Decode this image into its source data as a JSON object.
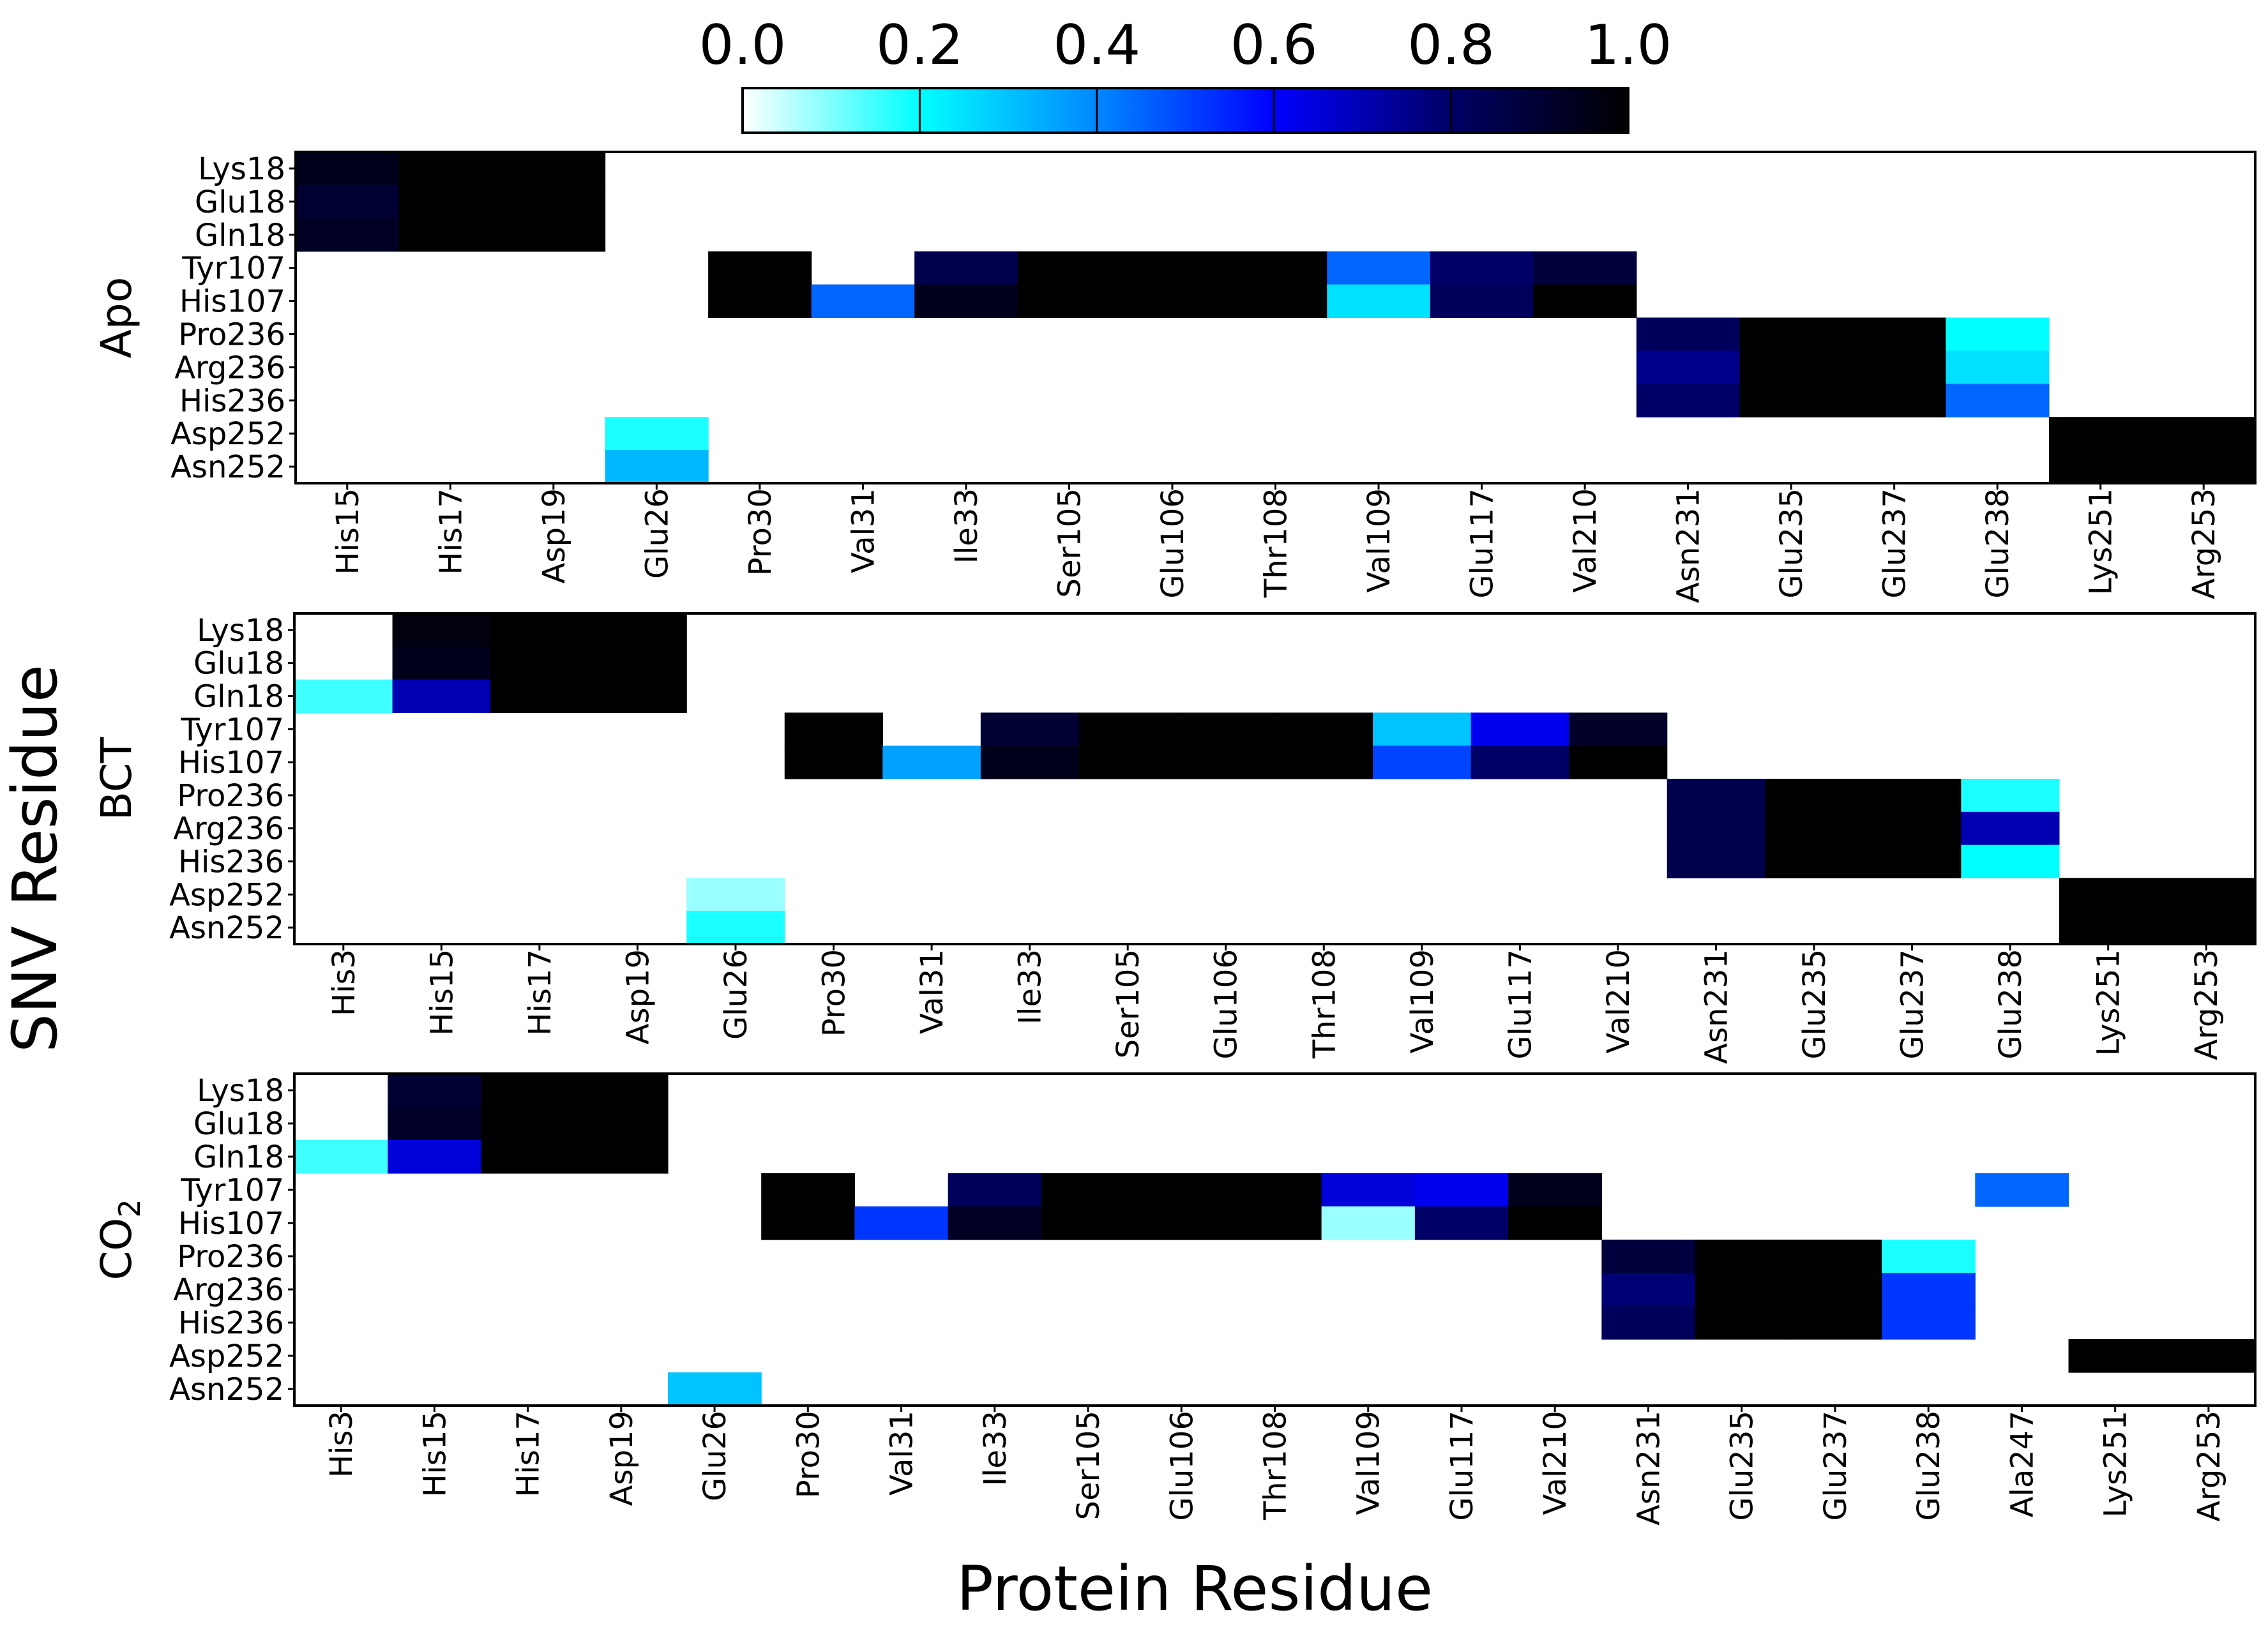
{
  "chart_data": {
    "type": "heatmap",
    "colorbar": {
      "ticks": [
        "0.0",
        "0.2",
        "0.4",
        "0.6",
        "0.8",
        "1.0"
      ],
      "range": [
        0,
        1
      ],
      "colors": [
        "#ffffff",
        "#00ffff",
        "#0088ff",
        "#0000ff",
        "#000066",
        "#000000"
      ]
    },
    "xlabel": "Protein Residue",
    "ylabel": "SNV Residue",
    "rows": [
      "Lys18",
      "Glu18",
      "Gln18",
      "Tyr107",
      "His107",
      "Pro236",
      "Arg236",
      "His236",
      "Asp252",
      "Asn252"
    ],
    "panels": [
      {
        "label": "Apo",
        "label_sub": "",
        "columns": [
          "His15",
          "His17",
          "Asp19",
          "Glu26",
          "Pro30",
          "Val31",
          "Ile33",
          "Ser105",
          "Glu106",
          "Thr108",
          "Val109",
          "Glu117",
          "Val210",
          "Asn231",
          "Glu235",
          "Glu237",
          "Glu238",
          "Lys251",
          "Arg253"
        ],
        "values": [
          [
            0.95,
            1.0,
            1.0,
            null,
            null,
            null,
            null,
            null,
            null,
            null,
            null,
            null,
            null,
            null,
            null,
            null,
            null,
            null,
            null
          ],
          [
            0.9,
            1.0,
            1.0,
            null,
            null,
            null,
            null,
            null,
            null,
            null,
            null,
            null,
            null,
            null,
            null,
            null,
            null,
            null,
            null
          ],
          [
            0.93,
            1.0,
            1.0,
            null,
            null,
            null,
            null,
            null,
            null,
            null,
            null,
            null,
            null,
            null,
            null,
            null,
            null,
            null,
            null
          ],
          [
            null,
            null,
            null,
            null,
            1.0,
            null,
            0.85,
            1.0,
            1.0,
            1.0,
            0.45,
            0.8,
            0.88,
            null,
            null,
            null,
            null,
            null,
            null
          ],
          [
            null,
            null,
            null,
            null,
            1.0,
            0.45,
            0.95,
            1.0,
            1.0,
            1.0,
            0.25,
            0.82,
            1.0,
            null,
            null,
            null,
            null,
            null,
            null
          ],
          [
            null,
            null,
            null,
            null,
            null,
            null,
            null,
            null,
            null,
            null,
            null,
            null,
            null,
            0.82,
            1.0,
            1.0,
            0.2,
            null,
            null
          ],
          [
            null,
            null,
            null,
            null,
            null,
            null,
            null,
            null,
            null,
            null,
            null,
            null,
            null,
            0.75,
            1.0,
            1.0,
            0.25,
            null,
            null
          ],
          [
            null,
            null,
            null,
            null,
            null,
            null,
            null,
            null,
            null,
            null,
            null,
            null,
            null,
            0.8,
            1.0,
            1.0,
            0.45,
            null,
            null
          ],
          [
            null,
            null,
            null,
            0.18,
            null,
            null,
            null,
            null,
            null,
            null,
            null,
            null,
            null,
            null,
            null,
            null,
            null,
            1.0,
            1.0
          ],
          [
            null,
            null,
            null,
            0.32,
            null,
            null,
            null,
            null,
            null,
            null,
            null,
            null,
            null,
            null,
            null,
            null,
            null,
            1.0,
            1.0
          ]
        ]
      },
      {
        "label": "BCT",
        "label_sub": "",
        "columns": [
          "His3",
          "His15",
          "His17",
          "Asp19",
          "Glu26",
          "Pro30",
          "Val31",
          "Ile33",
          "Ser105",
          "Glu106",
          "Thr108",
          "Val109",
          "Glu117",
          "Val210",
          "Asn231",
          "Glu235",
          "Glu237",
          "Glu238",
          "Lys251",
          "Arg253"
        ],
        "values": [
          [
            null,
            0.97,
            1.0,
            1.0,
            null,
            null,
            null,
            null,
            null,
            null,
            null,
            null,
            null,
            null,
            null,
            null,
            null,
            null,
            null,
            null
          ],
          [
            null,
            0.95,
            1.0,
            1.0,
            null,
            null,
            null,
            null,
            null,
            null,
            null,
            null,
            null,
            null,
            null,
            null,
            null,
            null,
            null,
            null
          ],
          [
            0.15,
            0.7,
            1.0,
            1.0,
            null,
            null,
            null,
            null,
            null,
            null,
            null,
            null,
            null,
            null,
            null,
            null,
            null,
            null,
            null,
            null
          ],
          [
            null,
            null,
            null,
            null,
            null,
            1.0,
            null,
            0.9,
            1.0,
            1.0,
            1.0,
            0.3,
            0.62,
            0.92,
            null,
            null,
            null,
            null,
            null,
            null
          ],
          [
            null,
            null,
            null,
            null,
            null,
            1.0,
            0.36,
            0.95,
            1.0,
            1.0,
            1.0,
            0.5,
            0.8,
            1.0,
            null,
            null,
            null,
            null,
            null,
            null
          ],
          [
            null,
            null,
            null,
            null,
            null,
            null,
            null,
            null,
            null,
            null,
            null,
            null,
            null,
            null,
            0.85,
            1.0,
            1.0,
            0.18,
            null,
            null
          ],
          [
            null,
            null,
            null,
            null,
            null,
            null,
            null,
            null,
            null,
            null,
            null,
            null,
            null,
            null,
            0.85,
            1.0,
            1.0,
            0.7,
            null,
            null
          ],
          [
            null,
            null,
            null,
            null,
            null,
            null,
            null,
            null,
            null,
            null,
            null,
            null,
            null,
            null,
            0.85,
            1.0,
            1.0,
            0.2,
            null,
            null
          ],
          [
            null,
            null,
            null,
            null,
            0.08,
            null,
            null,
            null,
            null,
            null,
            null,
            null,
            null,
            null,
            null,
            null,
            null,
            null,
            1.0,
            1.0
          ],
          [
            null,
            null,
            null,
            null,
            0.18,
            null,
            null,
            null,
            null,
            null,
            null,
            null,
            null,
            null,
            null,
            null,
            null,
            null,
            1.0,
            1.0
          ]
        ]
      },
      {
        "label": "CO",
        "label_sub": "2",
        "columns": [
          "His3",
          "His15",
          "His17",
          "Asp19",
          "Glu26",
          "Pro30",
          "Val31",
          "Ile33",
          "Ser105",
          "Glu106",
          "Thr108",
          "Val109",
          "Glu117",
          "Val210",
          "Asn231",
          "Glu235",
          "Glu237",
          "Glu238",
          "Ala247",
          "Lys251",
          "Arg253"
        ],
        "values": [
          [
            null,
            0.9,
            1.0,
            1.0,
            null,
            null,
            null,
            null,
            null,
            null,
            null,
            null,
            null,
            null,
            null,
            null,
            null,
            null,
            null,
            null,
            null
          ],
          [
            null,
            0.92,
            1.0,
            1.0,
            null,
            null,
            null,
            null,
            null,
            null,
            null,
            null,
            null,
            null,
            null,
            null,
            null,
            null,
            null,
            null,
            null
          ],
          [
            0.15,
            0.65,
            1.0,
            1.0,
            null,
            null,
            null,
            null,
            null,
            null,
            null,
            null,
            null,
            null,
            null,
            null,
            null,
            null,
            null,
            null,
            null
          ],
          [
            null,
            null,
            null,
            null,
            null,
            1.0,
            null,
            0.82,
            1.0,
            1.0,
            1.0,
            0.65,
            0.62,
            0.95,
            null,
            null,
            null,
            null,
            0.45,
            null,
            null
          ],
          [
            null,
            null,
            null,
            null,
            null,
            1.0,
            0.52,
            0.93,
            1.0,
            1.0,
            1.0,
            0.08,
            0.8,
            1.0,
            null,
            null,
            null,
            null,
            null,
            null,
            null
          ],
          [
            null,
            null,
            null,
            null,
            null,
            null,
            null,
            null,
            null,
            null,
            null,
            null,
            null,
            null,
            0.88,
            1.0,
            1.0,
            0.18,
            null,
            null,
            null
          ],
          [
            null,
            null,
            null,
            null,
            null,
            null,
            null,
            null,
            null,
            null,
            null,
            null,
            null,
            null,
            0.78,
            1.0,
            1.0,
            0.52,
            null,
            null,
            null
          ],
          [
            null,
            null,
            null,
            null,
            null,
            null,
            null,
            null,
            null,
            null,
            null,
            null,
            null,
            null,
            0.82,
            1.0,
            1.0,
            0.52,
            null,
            null,
            null
          ],
          [
            null,
            null,
            null,
            null,
            null,
            null,
            null,
            null,
            null,
            null,
            null,
            null,
            null,
            null,
            null,
            null,
            null,
            null,
            null,
            1.0,
            1.0
          ],
          [
            null,
            null,
            null,
            null,
            0.3,
            null,
            null,
            null,
            null,
            null,
            null,
            null,
            null,
            null,
            null,
            null,
            null,
            null,
            null,
            null,
            null
          ]
        ]
      }
    ]
  }
}
